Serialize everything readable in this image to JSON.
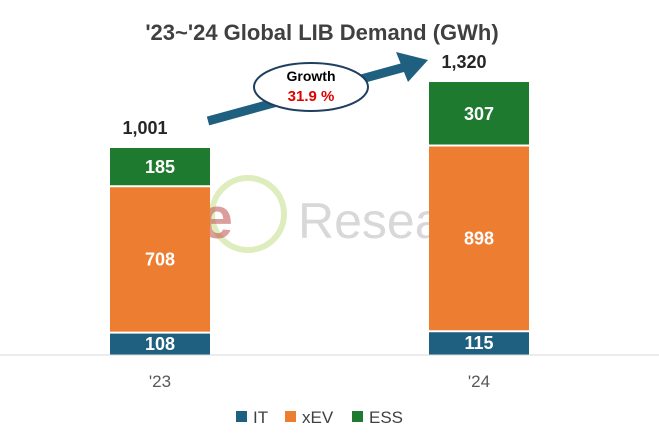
{
  "chart_data": {
    "type": "bar",
    "stacked": true,
    "title": "'23~'24 Global LIB Demand (GWh)",
    "categories": [
      "'23",
      "'24"
    ],
    "series": [
      {
        "name": "IT",
        "color": "#1f5f80",
        "values": [
          108,
          115
        ]
      },
      {
        "name": "xEV",
        "color": "#ed7d31",
        "values": [
          708,
          898
        ]
      },
      {
        "name": "ESS",
        "color": "#1e7a2e",
        "values": [
          185,
          307
        ]
      }
    ],
    "totals": [
      "1,001",
      "1,320"
    ],
    "ylim": [
      0,
      1400
    ],
    "grid": false,
    "legend_position": "bottom"
  },
  "annotation": {
    "label": "Growth",
    "value": "31.9 %"
  },
  "watermark": {
    "brand": "SNe",
    "brand_text": "Research"
  }
}
